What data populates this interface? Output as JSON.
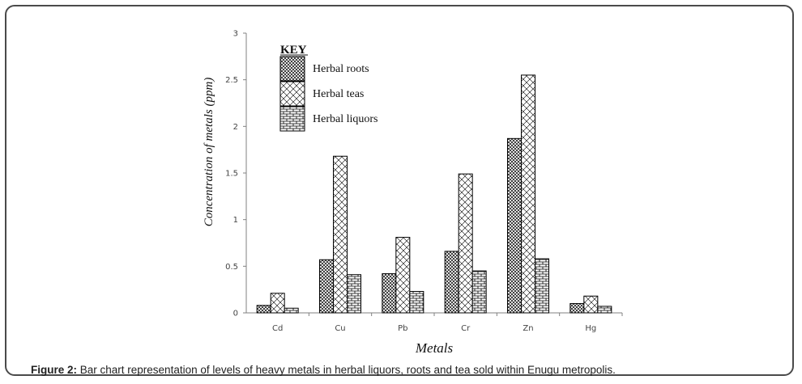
{
  "chart_data": {
    "type": "bar",
    "categories": [
      "Cd",
      "Cu",
      "Pb",
      "Cr",
      "Zn",
      "Hg"
    ],
    "series": [
      {
        "name": "Herbal roots",
        "values": [
          0.08,
          0.57,
          0.42,
          0.66,
          1.87,
          0.1
        ]
      },
      {
        "name": "Herbal teas",
        "values": [
          0.21,
          1.68,
          0.81,
          1.49,
          2.55,
          0.18
        ]
      },
      {
        "name": "Herbal liquors",
        "values": [
          0.05,
          0.41,
          0.23,
          0.45,
          0.58,
          0.07
        ]
      }
    ],
    "ylim": [
      0,
      3
    ],
    "yticks": [
      "0",
      "0.5",
      "1",
      "1.5",
      "2",
      "2.5",
      "3"
    ],
    "xlabel": "Metals",
    "ylabel": "Concentration of metals (ppm)",
    "legend_title": "KEY",
    "legend_position": "top-left"
  },
  "caption": {
    "label": "Figure 2:",
    "text": " Bar chart representation of levels of heavy metals in herbal liquors, roots and tea sold within Enugu metropolis."
  },
  "colors": {
    "frame": "#4a4a4a",
    "bar_stroke": "#000000",
    "axis": "#808080",
    "background": "#ffffff"
  }
}
